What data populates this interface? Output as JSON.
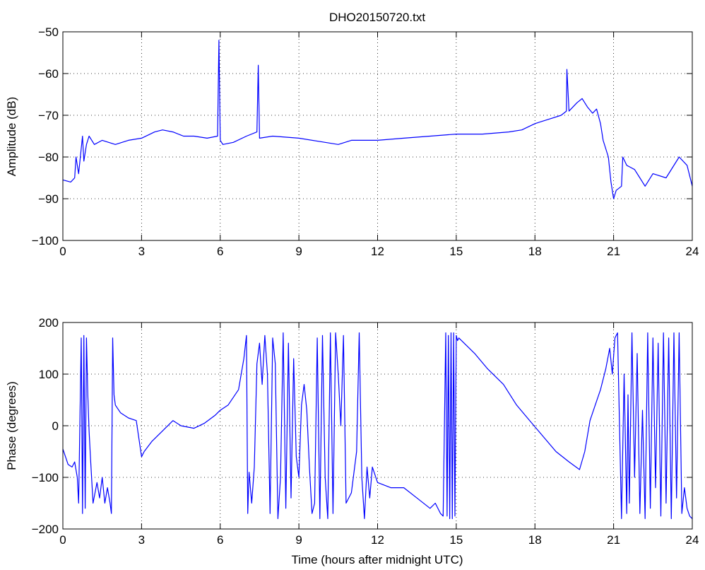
{
  "figure": {
    "line_color": "#0000ff",
    "background": "#ffffff"
  },
  "chart_data": [
    {
      "type": "line",
      "title": "DHO20150720.txt",
      "xlabel": "",
      "ylabel": "Amplitude (dB)",
      "xlim": [
        0,
        24
      ],
      "ylim": [
        -100,
        -50
      ],
      "xticks": [
        0,
        3,
        6,
        9,
        12,
        15,
        18,
        21,
        24
      ],
      "yticks": [
        -100,
        -90,
        -80,
        -70,
        -60,
        -50
      ],
      "grid": true,
      "series": [
        {
          "x": [
            0,
            0.3,
            0.45,
            0.5,
            0.6,
            0.75,
            0.8,
            0.9,
            1.0,
            1.2,
            1.5,
            2.0,
            2.5,
            3.0,
            3.5,
            3.8,
            4.2,
            4.6,
            5.0,
            5.5,
            5.9,
            5.95,
            6.0,
            6.1,
            6.5,
            7.0,
            7.4,
            7.45,
            7.5,
            8.0,
            9.0,
            10.0,
            10.5,
            11.0,
            12.0,
            13.0,
            14.0,
            15.0,
            16.0,
            17.0,
            17.5,
            18.0,
            18.5,
            19.0,
            19.2,
            19.22,
            19.3,
            19.6,
            19.8,
            20.0,
            20.2,
            20.35,
            20.5,
            20.6,
            20.8,
            20.9,
            21.0,
            21.1,
            21.3,
            21.35,
            21.5,
            21.8,
            22.0,
            22.2,
            22.5,
            23.0,
            23.5,
            23.8,
            24.0
          ],
          "y": [
            -85.5,
            -86,
            -85,
            -80,
            -84,
            -75,
            -81,
            -77,
            -75,
            -77,
            -76,
            -77,
            -76,
            -75.5,
            -74,
            -73.5,
            -74,
            -75,
            -75,
            -75.5,
            -75,
            -52,
            -76,
            -77,
            -76.5,
            -75,
            -74,
            -58,
            -75.5,
            -75,
            -75.5,
            -76.5,
            -77,
            -76,
            -76,
            -75.5,
            -75,
            -74.5,
            -74.5,
            -74,
            -73.5,
            -72,
            -71,
            -70,
            -69,
            -59,
            -69,
            -67,
            -66,
            -68,
            -69.5,
            -68.5,
            -72,
            -76,
            -80,
            -86,
            -90,
            -88,
            -87,
            -80,
            -82,
            -83,
            -85,
            -87,
            -84,
            -85,
            -80,
            -82,
            -87
          ]
        }
      ]
    },
    {
      "type": "line",
      "title": "",
      "xlabel": "Time (hours after midnight UTC)",
      "ylabel": "Phase (degrees)",
      "xlim": [
        0,
        24
      ],
      "ylim": [
        -200,
        200
      ],
      "xticks": [
        0,
        3,
        6,
        9,
        12,
        15,
        18,
        21,
        24
      ],
      "yticks": [
        -200,
        -100,
        0,
        100,
        200
      ],
      "grid": true,
      "series": [
        {
          "x": [
            0,
            0.2,
            0.35,
            0.45,
            0.55,
            0.6,
            0.7,
            0.75,
            0.8,
            0.85,
            0.9,
            0.95,
            1.0,
            1.05,
            1.15,
            1.3,
            1.4,
            1.5,
            1.6,
            1.7,
            1.8,
            1.85,
            1.9,
            1.95,
            2.0,
            2.2,
            2.5,
            2.8,
            3.0,
            3.1,
            3.4,
            3.8,
            4.2,
            4.5,
            5.0,
            5.4,
            5.8,
            6.0,
            6.3,
            6.7,
            6.9,
            7.0,
            7.05,
            7.1,
            7.2,
            7.3,
            7.4,
            7.5,
            7.6,
            7.7,
            7.8,
            7.9,
            8.0,
            8.1,
            8.2,
            8.3,
            8.4,
            8.5,
            8.6,
            8.7,
            8.8,
            8.9,
            9.0,
            9.1,
            9.2,
            9.3,
            9.4,
            9.5,
            9.6,
            9.7,
            9.8,
            9.9,
            10.0,
            10.1,
            10.2,
            10.3,
            10.4,
            10.5,
            10.6,
            10.7,
            10.8,
            11.0,
            11.2,
            11.3,
            11.4,
            11.5,
            11.6,
            11.7,
            11.8,
            12.0,
            12.5,
            13.0,
            13.5,
            14.0,
            14.2,
            14.4,
            14.5,
            14.6,
            14.65,
            14.7,
            14.75,
            14.8,
            14.85,
            14.9,
            14.95,
            15.0,
            15.05,
            15.1,
            15.3,
            15.7,
            16.2,
            16.8,
            17.3,
            17.8,
            18.3,
            18.8,
            19.3,
            19.7,
            19.9,
            20.1,
            20.3,
            20.5,
            20.7,
            20.85,
            20.95,
            21.05,
            21.15,
            21.3,
            21.4,
            21.5,
            21.55,
            21.6,
            21.7,
            21.8,
            21.9,
            22.0,
            22.1,
            22.2,
            22.3,
            22.4,
            22.5,
            22.6,
            22.7,
            22.8,
            22.9,
            23.0,
            23.1,
            23.2,
            23.3,
            23.4,
            23.5,
            23.6,
            23.7,
            23.8,
            23.9,
            24.0
          ],
          "y": [
            -45,
            -75,
            -80,
            -70,
            -100,
            -150,
            170,
            -170,
            175,
            -160,
            170,
            60,
            -10,
            -60,
            -150,
            -110,
            -140,
            -100,
            -150,
            -120,
            -150,
            -170,
            170,
            60,
            40,
            25,
            15,
            10,
            -60,
            -50,
            -30,
            -10,
            10,
            0,
            -5,
            5,
            20,
            30,
            40,
            70,
            130,
            175,
            -170,
            -90,
            -150,
            -80,
            120,
            160,
            80,
            175,
            100,
            -170,
            170,
            120,
            -180,
            -100,
            180,
            -160,
            160,
            -140,
            130,
            -60,
            -100,
            40,
            80,
            30,
            -80,
            -170,
            -150,
            170,
            -180,
            175,
            -100,
            -180,
            180,
            -170,
            180,
            100,
            0,
            175,
            -150,
            -130,
            -50,
            180,
            -100,
            -180,
            -80,
            -140,
            -80,
            -110,
            -120,
            -120,
            -140,
            -160,
            -150,
            -170,
            -175,
            180,
            -175,
            175,
            -180,
            180,
            -180,
            180,
            -175,
            175,
            165,
            170,
            160,
            140,
            110,
            80,
            40,
            10,
            -20,
            -50,
            -70,
            -85,
            -50,
            10,
            40,
            70,
            110,
            150,
            100,
            170,
            180,
            -180,
            100,
            -170,
            60,
            -150,
            180,
            -100,
            140,
            -170,
            30,
            -180,
            180,
            -160,
            170,
            -120,
            160,
            -175,
            180,
            -150,
            170,
            -180,
            180,
            -140,
            180,
            -170,
            -120,
            -160,
            -175,
            -180
          ]
        }
      ]
    }
  ]
}
